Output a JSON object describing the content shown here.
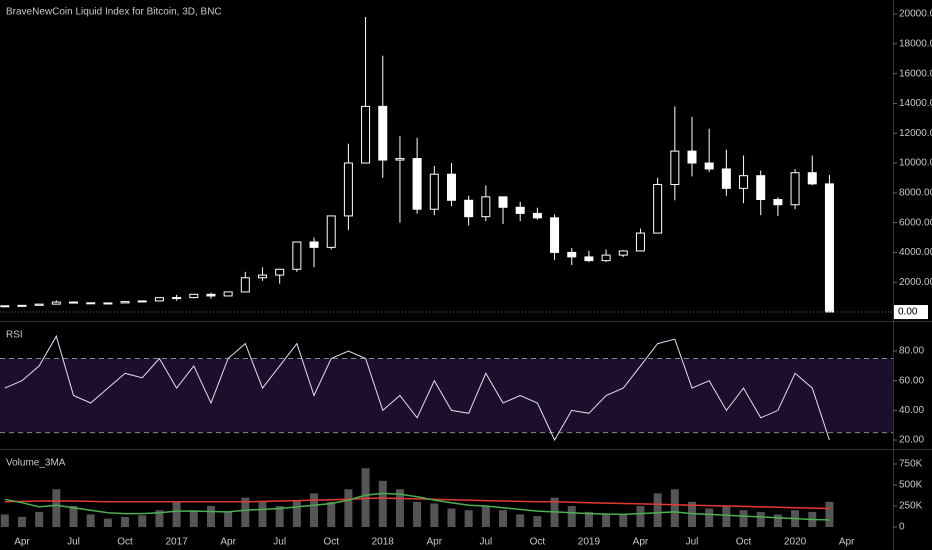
{
  "chart_data": [
    {
      "type": "candlestick",
      "title": "BraveNewCoin Liquid Index for Bitcoin, 3D, BNC",
      "color": "#ffffff",
      "categories": [
        null,
        "Apr",
        null,
        null,
        "Jul",
        null,
        null,
        "Oct",
        null,
        null,
        "2017",
        null,
        null,
        "Apr",
        null,
        null,
        "Jul",
        null,
        null,
        "Oct",
        null,
        null,
        "2018",
        null,
        null,
        "Apr",
        null,
        null,
        "Jul",
        null,
        null,
        "Oct",
        null,
        null,
        "2019",
        null,
        null,
        "Apr",
        null,
        null,
        "Jul",
        null,
        null,
        "Oct",
        null,
        null,
        "2020",
        null,
        null,
        "Apr"
      ],
      "open": [
        420,
        415,
        450,
        530,
        670,
        620,
        575,
        610,
        700,
        745,
        965,
        970,
        1190,
        1080,
        1350,
        2300,
        2480,
        2870,
        4700,
        4340,
        6450,
        10000,
        13800,
        10200,
        10300,
        6900,
        9250,
        7500,
        6400,
        7730,
        7030,
        6620,
        6320,
        4000,
        3700,
        3450,
        3820,
        4100,
        5300,
        8560,
        10800,
        10000,
        9600,
        8300,
        9150,
        7550,
        7200,
        9350,
        8600,
        null
      ],
      "high": [
        440,
        460,
        540,
        780,
        700,
        620,
        615,
        720,
        760,
        970,
        1150,
        1200,
        1300,
        1350,
        2700,
        3000,
        2900,
        4700,
        5000,
        6450,
        11300,
        19800,
        17200,
        11800,
        11700,
        9800,
        10000,
        7800,
        8500,
        7760,
        7400,
        7000,
        6550,
        4300,
        4100,
        4200,
        4150,
        5600,
        9000,
        13800,
        13100,
        12300,
        10900,
        10500,
        9500,
        7700,
        9600,
        10500,
        9200,
        null
      ],
      "low": [
        405,
        410,
        440,
        530,
        600,
        540,
        570,
        600,
        690,
        740,
        760,
        920,
        900,
        1070,
        1350,
        2100,
        1900,
        2700,
        3000,
        4200,
        5500,
        10000,
        9000,
        6000,
        6600,
        6500,
        7100,
        5800,
        6100,
        5900,
        6100,
        6200,
        3500,
        3150,
        3350,
        3350,
        3700,
        4100,
        5300,
        7500,
        9100,
        9400,
        7800,
        7300,
        6500,
        6450,
        6900,
        8500,
        0,
        null
      ],
      "close": [
        415,
        450,
        530,
        670,
        620,
        575,
        610,
        700,
        745,
        965,
        970,
        1190,
        1080,
        1350,
        2300,
        2480,
        2870,
        4700,
        4340,
        6450,
        10000,
        13800,
        10200,
        10300,
        6900,
        9250,
        7500,
        6400,
        7730,
        7030,
        6620,
        6320,
        4000,
        3700,
        3450,
        3820,
        4100,
        5300,
        8560,
        10800,
        10000,
        9600,
        8300,
        9150,
        7550,
        7200,
        9350,
        8600,
        0,
        null
      ],
      "last_value_label": "0.00",
      "ylim": [
        -400,
        20940
      ],
      "yticks": [
        {
          "value": 0,
          "label": "0.00"
        },
        {
          "value": 2000,
          "label": "2000.00"
        },
        {
          "value": 4000,
          "label": "4000.00"
        },
        {
          "value": 6000,
          "label": "6000.00"
        },
        {
          "value": 8000,
          "label": "8000.00"
        },
        {
          "value": 10000,
          "label": "10000.00"
        },
        {
          "value": 12000,
          "label": "12000.00"
        },
        {
          "value": 14000,
          "label": "14000.00"
        },
        {
          "value": 16000,
          "label": "16000.00"
        },
        {
          "value": 18000,
          "label": "18000.00"
        },
        {
          "value": 20000,
          "label": "20000.00"
        }
      ]
    },
    {
      "type": "line",
      "title": "RSI",
      "color": "#e6dcf5",
      "fill": "#1c0f2b",
      "hlines": [
        25,
        75
      ],
      "values": [
        55,
        60,
        70,
        90,
        50,
        45,
        55,
        65,
        62,
        75,
        55,
        70,
        45,
        75,
        85,
        55,
        70,
        85,
        50,
        75,
        80,
        75,
        40,
        50,
        35,
        60,
        40,
        38,
        65,
        45,
        50,
        45,
        20,
        40,
        38,
        50,
        55,
        70,
        85,
        88,
        55,
        60,
        40,
        55,
        35,
        40,
        65,
        55,
        20,
        null
      ],
      "ylim": [
        15.3,
        96.9
      ],
      "yticks": [
        {
          "value": 20,
          "label": "20.00"
        },
        {
          "value": 40,
          "label": "40.00"
        },
        {
          "value": 60,
          "label": "60.00"
        },
        {
          "value": 80,
          "label": "80.00"
        }
      ]
    },
    {
      "type": "bar",
      "title": "Volume_3MA",
      "color": "#555555",
      "values": [
        150000,
        120000,
        180000,
        450000,
        250000,
        150000,
        100000,
        120000,
        140000,
        200000,
        300000,
        200000,
        250000,
        180000,
        350000,
        300000,
        250000,
        320000,
        400000,
        300000,
        450000,
        700000,
        550000,
        450000,
        300000,
        280000,
        220000,
        200000,
        250000,
        200000,
        150000,
        130000,
        350000,
        250000,
        180000,
        160000,
        150000,
        250000,
        400000,
        450000,
        300000,
        220000,
        250000,
        200000,
        180000,
        150000,
        200000,
        180000,
        300000,
        null
      ],
      "series": [
        {
          "color": "#e53935",
          "values": [
            300000,
            305000,
            310000,
            310000,
            310000,
            305000,
            300000,
            300000,
            300000,
            300000,
            300000,
            300000,
            300000,
            300000,
            300000,
            305000,
            310000,
            315000,
            320000,
            325000,
            330000,
            340000,
            345000,
            340000,
            335000,
            330000,
            325000,
            320000,
            315000,
            310000,
            305000,
            300000,
            300000,
            295000,
            290000,
            285000,
            280000,
            275000,
            270000,
            265000,
            260000,
            255000,
            250000,
            245000,
            240000,
            235000,
            230000,
            225000,
            220000,
            null
          ]
        },
        {
          "color": "#4caf50",
          "values": [
            330000,
            290000,
            240000,
            260000,
            230000,
            200000,
            170000,
            160000,
            160000,
            170000,
            190000,
            190000,
            185000,
            180000,
            200000,
            210000,
            220000,
            240000,
            260000,
            280000,
            320000,
            380000,
            400000,
            390000,
            360000,
            320000,
            290000,
            260000,
            250000,
            230000,
            210000,
            190000,
            180000,
            170000,
            160000,
            155000,
            150000,
            160000,
            170000,
            180000,
            160000,
            150000,
            140000,
            130000,
            120000,
            110000,
            100000,
            90000,
            85000,
            null
          ]
        }
      ],
      "ylim": [
        -95000,
        893000
      ],
      "yticks": [
        0,
        {
          "value": 250000,
          "label": "250K"
        },
        {
          "value": 500000,
          "label": "500K"
        },
        {
          "value": 750000,
          "label": "750K"
        }
      ]
    }
  ]
}
